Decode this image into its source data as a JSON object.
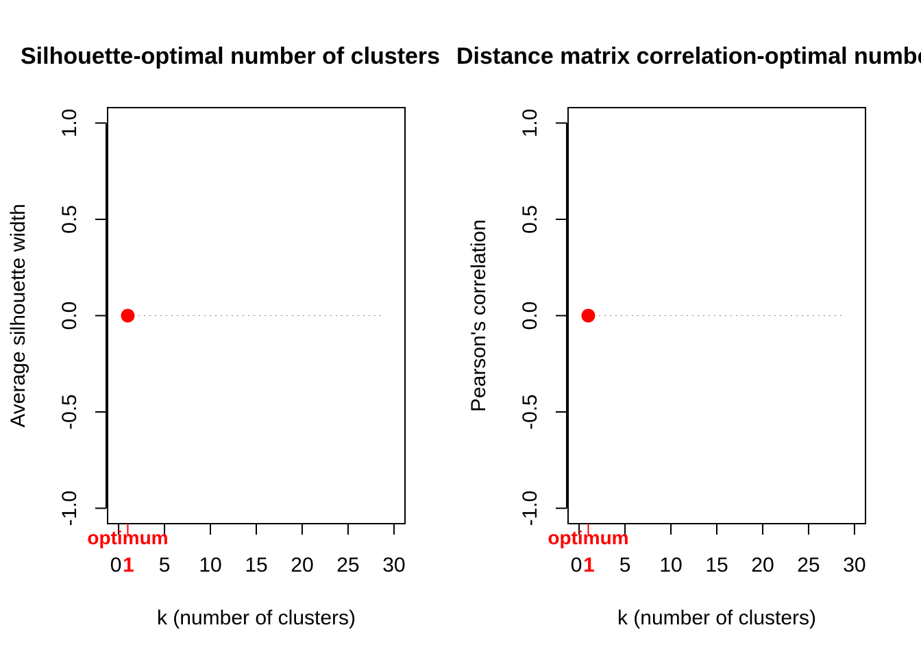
{
  "chart_data": [
    {
      "type": "scatter",
      "title": "Silhouette-optimal number of clusters",
      "xlabel": "k (number of clusters)",
      "ylabel": "Average silhouette width",
      "xlim": [
        0,
        30
      ],
      "ylim": [
        -1,
        1
      ],
      "x_ticks": [
        "0",
        "5",
        "10",
        "15",
        "20",
        "25",
        "30"
      ],
      "y_ticks": [
        "-1.0",
        "-0.5",
        "0.0",
        "0.5",
        "1.0"
      ],
      "series": [
        {
          "x": [
            1
          ],
          "y": [
            0
          ]
        }
      ],
      "reference_line": {
        "y": 0,
        "x_range": [
          1,
          29
        ],
        "style": "dotted"
      },
      "optimum": {
        "k": 1,
        "tick_label": "1",
        "label": "optimum",
        "color": "#ff0000"
      },
      "point_color": "#ff0000",
      "grid": false
    },
    {
      "type": "scatter",
      "title": "Distance matrix correlation-optimal number of clusters",
      "xlabel": "k (number of clusters)",
      "ylabel": "Pearson's correlation",
      "xlim": [
        0,
        30
      ],
      "ylim": [
        -1,
        1
      ],
      "x_ticks": [
        "0",
        "5",
        "10",
        "15",
        "20",
        "25",
        "30"
      ],
      "y_ticks": [
        "-1.0",
        "-0.5",
        "0.0",
        "0.5",
        "1.0"
      ],
      "series": [
        {
          "x": [
            1
          ],
          "y": [
            0
          ]
        }
      ],
      "reference_line": {
        "y": 0,
        "x_range": [
          1,
          29
        ],
        "style": "dotted"
      },
      "optimum": {
        "k": 1,
        "tick_label": "1",
        "label": "optimum",
        "color": "#ff0000"
      },
      "point_color": "#ff0000",
      "grid": false
    }
  ]
}
